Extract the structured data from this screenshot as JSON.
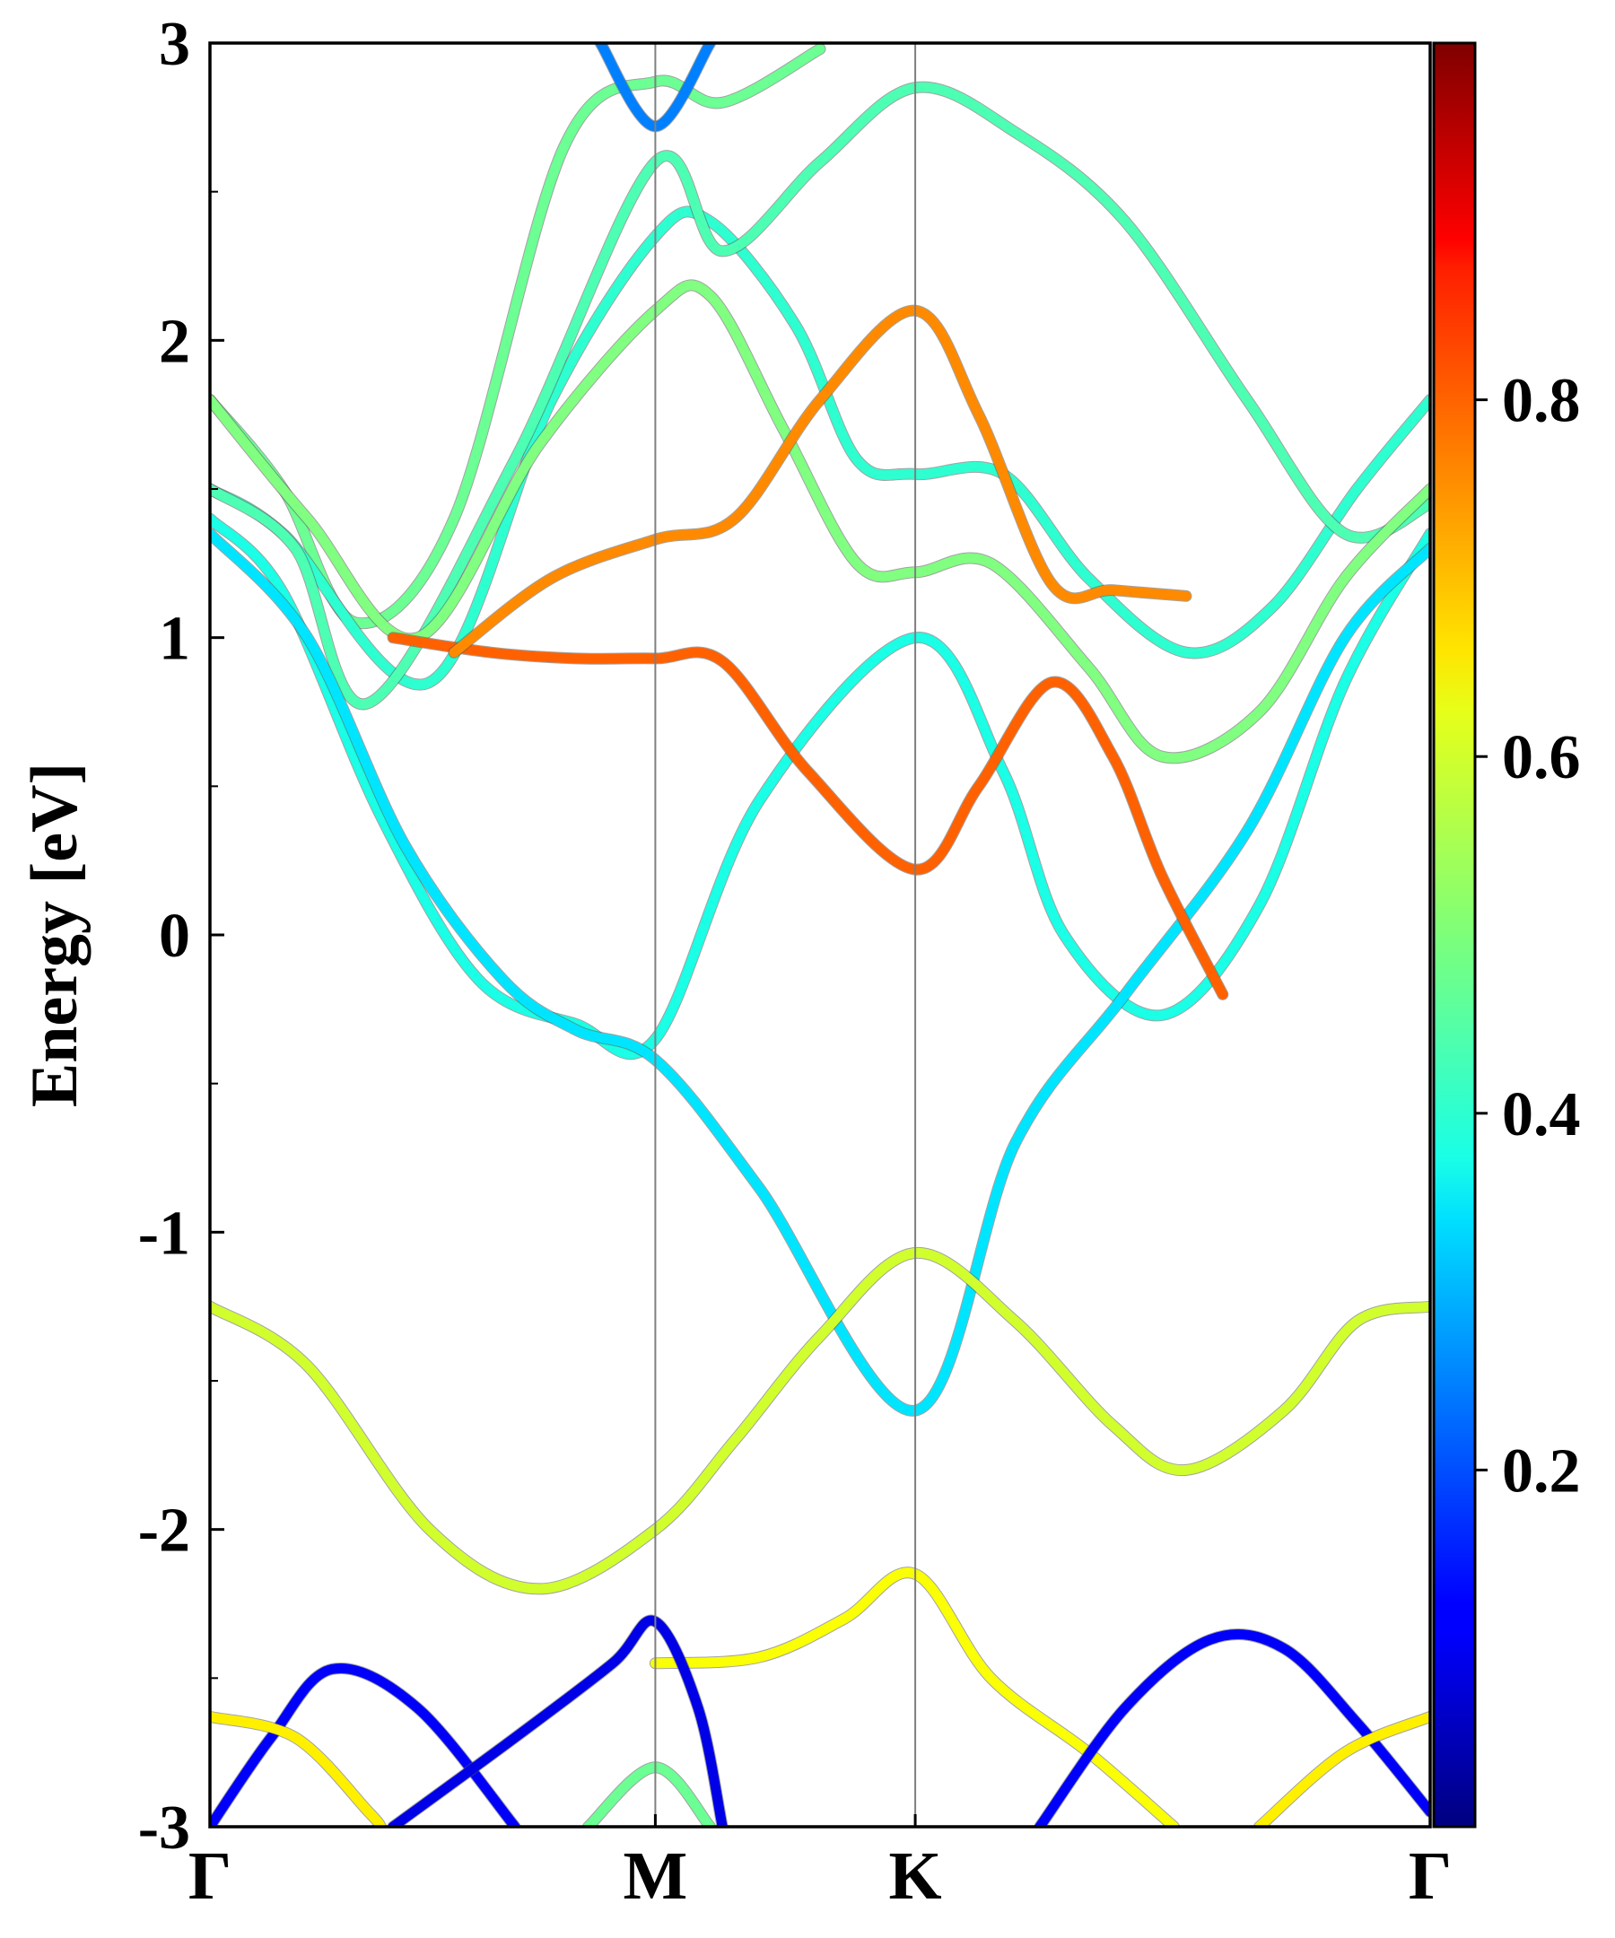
{
  "chart_data": {
    "type": "line",
    "title": "",
    "xlabel": "",
    "ylabel": "Energy [eV]",
    "ylim": [
      -3,
      3
    ],
    "yticks": [
      {
        "value": 3,
        "label": "3"
      },
      {
        "value": 2,
        "label": "2"
      },
      {
        "value": 1,
        "label": "1"
      },
      {
        "value": 0,
        "label": "0"
      },
      {
        "value": -1,
        "label": "-1"
      },
      {
        "value": -2,
        "label": "-2"
      },
      {
        "value": -3,
        "label": "-3"
      }
    ],
    "yminor_step": 0.5,
    "xlim": [
      0,
      1
    ],
    "high_symmetry_points": [
      {
        "label": "Γ",
        "x": 0.0
      },
      {
        "label": "M",
        "x": 0.365
      },
      {
        "label": "K",
        "x": 0.578
      },
      {
        "label": "Γ",
        "x": 1.0
      }
    ],
    "colorbar": {
      "colormap": "jet",
      "range": [
        0.0,
        1.0
      ],
      "ticks": [
        {
          "value": 0.2,
          "label": "0.2"
        },
        {
          "value": 0.4,
          "label": "0.4"
        },
        {
          "value": 0.6,
          "label": "0.6"
        },
        {
          "value": 0.8,
          "label": "0.8"
        }
      ]
    },
    "series": [
      {
        "name": "band-cb-upper-1",
        "weight": 0.48,
        "points": [
          [
            0.0,
            1.8
          ],
          [
            0.06,
            1.5
          ],
          [
            0.12,
            1.05
          ],
          [
            0.2,
            1.4
          ],
          [
            0.29,
            2.65
          ],
          [
            0.365,
            2.87
          ],
          [
            0.42,
            2.8
          ],
          [
            0.5,
            2.98
          ]
        ]
      },
      {
        "name": "band-cb-upper-2",
        "weight": 0.42,
        "points": [
          [
            0.0,
            1.5
          ],
          [
            0.06,
            1.35
          ],
          [
            0.18,
            0.85
          ],
          [
            0.28,
            1.8
          ],
          [
            0.365,
            2.35
          ],
          [
            0.41,
            2.4
          ],
          [
            0.48,
            2.05
          ],
          [
            0.53,
            1.6
          ],
          [
            0.578,
            1.55
          ],
          [
            0.65,
            1.55
          ],
          [
            0.72,
            1.2
          ],
          [
            0.8,
            0.95
          ],
          [
            0.87,
            1.1
          ],
          [
            0.94,
            1.5
          ],
          [
            1.0,
            1.8
          ]
        ]
      },
      {
        "name": "band-cb-upper-3",
        "weight": 0.45,
        "points": [
          [
            0.0,
            1.5
          ],
          [
            0.07,
            1.3
          ],
          [
            0.13,
            0.78
          ],
          [
            0.25,
            1.6
          ],
          [
            0.365,
            2.6
          ],
          [
            0.42,
            2.3
          ],
          [
            0.5,
            2.6
          ],
          [
            0.578,
            2.85
          ],
          [
            0.66,
            2.7
          ],
          [
            0.75,
            2.4
          ],
          [
            0.85,
            1.8
          ],
          [
            0.93,
            1.35
          ],
          [
            1.0,
            1.45
          ]
        ]
      },
      {
        "name": "band-cb-upper-4",
        "weight": 0.5,
        "points": [
          [
            0.0,
            1.8
          ],
          [
            0.08,
            1.4
          ],
          [
            0.17,
            1.0
          ],
          [
            0.27,
            1.65
          ],
          [
            0.365,
            2.1
          ],
          [
            0.41,
            2.15
          ],
          [
            0.47,
            1.7
          ],
          [
            0.53,
            1.25
          ],
          [
            0.578,
            1.22
          ],
          [
            0.64,
            1.25
          ],
          [
            0.72,
            0.9
          ],
          [
            0.78,
            0.6
          ],
          [
            0.86,
            0.75
          ],
          [
            0.93,
            1.2
          ],
          [
            1.0,
            1.5
          ]
        ]
      },
      {
        "name": "band-vb-upper-a",
        "weight": 0.4,
        "points": [
          [
            0.0,
            1.4
          ],
          [
            0.06,
            1.15
          ],
          [
            0.14,
            0.4
          ],
          [
            0.22,
            -0.15
          ],
          [
            0.3,
            -0.3
          ],
          [
            0.365,
            -0.35
          ],
          [
            0.45,
            0.45
          ],
          [
            0.578,
            1.0
          ],
          [
            0.65,
            0.55
          ],
          [
            0.7,
            0.0
          ],
          [
            0.78,
            -0.27
          ],
          [
            0.86,
            0.1
          ],
          [
            0.93,
            0.85
          ],
          [
            1.0,
            1.35
          ]
        ]
      },
      {
        "name": "band-vb-upper-b",
        "weight": 0.35,
        "points": [
          [
            0.0,
            1.35
          ],
          [
            0.08,
            1.0
          ],
          [
            0.16,
            0.3
          ],
          [
            0.24,
            -0.15
          ],
          [
            0.3,
            -0.32
          ],
          [
            0.365,
            -0.42
          ],
          [
            0.45,
            -0.85
          ],
          [
            0.578,
            -1.6
          ],
          [
            0.66,
            -0.7
          ],
          [
            0.75,
            -0.2
          ],
          [
            0.85,
            0.35
          ],
          [
            0.93,
            1.0
          ],
          [
            1.0,
            1.3
          ]
        ]
      },
      {
        "name": "band-orange-flat",
        "weight": 0.78,
        "points": [
          [
            0.15,
            1.0
          ],
          [
            0.23,
            0.95
          ],
          [
            0.3,
            0.93
          ],
          [
            0.365,
            0.93
          ],
          [
            0.42,
            0.92
          ],
          [
            0.49,
            0.55
          ],
          [
            0.578,
            0.22
          ],
          [
            0.63,
            0.5
          ],
          [
            0.69,
            0.85
          ],
          [
            0.74,
            0.6
          ],
          [
            0.78,
            0.2
          ],
          [
            0.83,
            -0.2
          ]
        ]
      },
      {
        "name": "band-orange-rise",
        "weight": 0.74,
        "points": [
          [
            0.2,
            0.95
          ],
          [
            0.28,
            1.2
          ],
          [
            0.365,
            1.33
          ],
          [
            0.43,
            1.4
          ],
          [
            0.5,
            1.8
          ],
          [
            0.578,
            2.1
          ],
          [
            0.63,
            1.75
          ],
          [
            0.69,
            1.18
          ],
          [
            0.74,
            1.16
          ],
          [
            0.8,
            1.14
          ]
        ]
      },
      {
        "name": "band-mid-green",
        "weight": 0.58,
        "points": [
          [
            0.0,
            -1.25
          ],
          [
            0.08,
            -1.45
          ],
          [
            0.18,
            -2.0
          ],
          [
            0.27,
            -2.2
          ],
          [
            0.365,
            -2.0
          ],
          [
            0.43,
            -1.7
          ],
          [
            0.5,
            -1.35
          ],
          [
            0.578,
            -1.07
          ],
          [
            0.66,
            -1.3
          ],
          [
            0.74,
            -1.65
          ],
          [
            0.8,
            -1.8
          ],
          [
            0.88,
            -1.6
          ],
          [
            0.94,
            -1.3
          ],
          [
            1.0,
            -1.25
          ]
        ]
      },
      {
        "name": "band-low-yellow",
        "weight": 0.62,
        "points": [
          [
            0.365,
            -2.45
          ],
          [
            0.45,
            -2.43
          ],
          [
            0.52,
            -2.3
          ],
          [
            0.578,
            -2.15
          ],
          [
            0.64,
            -2.5
          ],
          [
            0.72,
            -2.75
          ],
          [
            0.79,
            -3.0
          ]
        ]
      },
      {
        "name": "band-low-blue-1",
        "weight": 0.12,
        "points": [
          [
            0.0,
            -3.0
          ],
          [
            0.05,
            -2.7
          ],
          [
            0.1,
            -2.47
          ],
          [
            0.17,
            -2.6
          ],
          [
            0.25,
            -3.0
          ]
        ]
      },
      {
        "name": "band-low-blue-2",
        "weight": 0.1,
        "points": [
          [
            0.15,
            -3.0
          ],
          [
            0.25,
            -2.7
          ],
          [
            0.33,
            -2.45
          ],
          [
            0.365,
            -2.31
          ],
          [
            0.4,
            -2.6
          ],
          [
            0.42,
            -3.0
          ]
        ]
      },
      {
        "name": "band-low-blue-3",
        "weight": 0.12,
        "points": [
          [
            0.68,
            -3.0
          ],
          [
            0.75,
            -2.6
          ],
          [
            0.82,
            -2.37
          ],
          [
            0.88,
            -2.4
          ],
          [
            0.94,
            -2.65
          ],
          [
            1.0,
            -2.95
          ]
        ]
      },
      {
        "name": "band-low-yellow-2",
        "weight": 0.64,
        "points": [
          [
            0.0,
            -2.63
          ],
          [
            0.07,
            -2.7
          ],
          [
            0.13,
            -2.95
          ],
          [
            0.14,
            -3.0
          ]
        ]
      },
      {
        "name": "band-low-yellow-3",
        "weight": 0.64,
        "points": [
          [
            0.86,
            -3.0
          ],
          [
            0.93,
            -2.75
          ],
          [
            1.0,
            -2.63
          ]
        ]
      },
      {
        "name": "band-low-green-4",
        "weight": 0.48,
        "points": [
          [
            0.31,
            -3.0
          ],
          [
            0.365,
            -2.8
          ],
          [
            0.41,
            -3.0
          ]
        ]
      },
      {
        "name": "band-top-blue",
        "weight": 0.25,
        "points": [
          [
            0.32,
            3.0
          ],
          [
            0.365,
            2.72
          ],
          [
            0.41,
            3.0
          ]
        ]
      }
    ]
  }
}
